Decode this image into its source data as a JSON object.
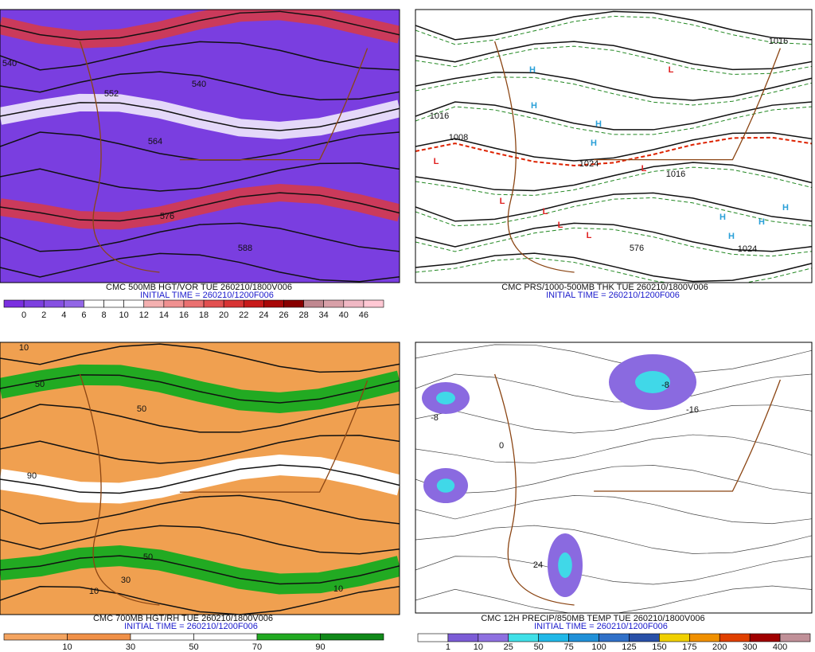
{
  "panels": [
    {
      "title": "CMC 500MB HGT/VOR TUE 260210/1800V006",
      "initial_time": "INITIAL TIME = 260210/1200F006",
      "map_labels": [
        "540",
        "552",
        "540",
        "564",
        "576",
        "588"
      ],
      "colorbar": {
        "labels": [
          0,
          2,
          4,
          6,
          8,
          10,
          12,
          14,
          16,
          18,
          20,
          22,
          24,
          26,
          28,
          34,
          40,
          46
        ],
        "colors": [
          "#7a2fe0",
          "#7d40e0",
          "#8650e2",
          "#9266e6",
          "#ffffff",
          "#ffffff",
          "#ffffff",
          "#f4b0b0",
          "#f09090",
          "#ea7070",
          "#e25050",
          "#d83434",
          "#c81a1a",
          "#a80808",
          "#880000",
          "#c08890",
          "#d8a0a8",
          "#f0b8c4",
          "#ffc8d4"
        ]
      }
    },
    {
      "title": "CMC PRS/1000-500MB THK TUE 260210/1800V006",
      "initial_time": "INITIAL TIME = 260210/1200F006",
      "map_labels": [
        "L",
        "L",
        "L",
        "L",
        "L",
        "L",
        "L",
        "H",
        "H",
        "H",
        "H",
        "H",
        "H",
        "H",
        "H",
        "1016",
        "1016",
        "1008",
        "1024",
        "1016",
        "1024",
        "576"
      ]
    },
    {
      "title": "CMC 700MB HGT/RH TUE 260210/1800V006",
      "initial_time": "INITIAL TIME = 260210/1200F006",
      "map_labels": [
        "10",
        "50",
        "90",
        "50",
        "30",
        "10",
        "50",
        "10"
      ],
      "colorbar": {
        "labels": [
          10,
          30,
          50,
          70,
          90
        ],
        "colors": [
          "#f4a460",
          "#f09048",
          "#ffffff",
          "#ffffff",
          "#22aa22",
          "#118a1a"
        ]
      }
    },
    {
      "title": "CMC 12H PRECIP/850MB TEMP TUE 260210/1800V006",
      "initial_time": "INITIAL TIME = 260210/1200F006",
      "map_labels": [
        "-8",
        "0",
        "-16",
        "24",
        "-8"
      ],
      "colorbar": {
        "labels": [
          1,
          10,
          25,
          50,
          75,
          100,
          125,
          150,
          175,
          200,
          300,
          400
        ],
        "colors": [
          "#ffffff",
          "#7c5cd6",
          "#8e70e0",
          "#40e0e8",
          "#20b8e8",
          "#2090d8",
          "#3070c8",
          "#2850a8",
          "#f0d000",
          "#f09000",
          "#e04000",
          "#a00000",
          "#c09098"
        ]
      }
    }
  ]
}
